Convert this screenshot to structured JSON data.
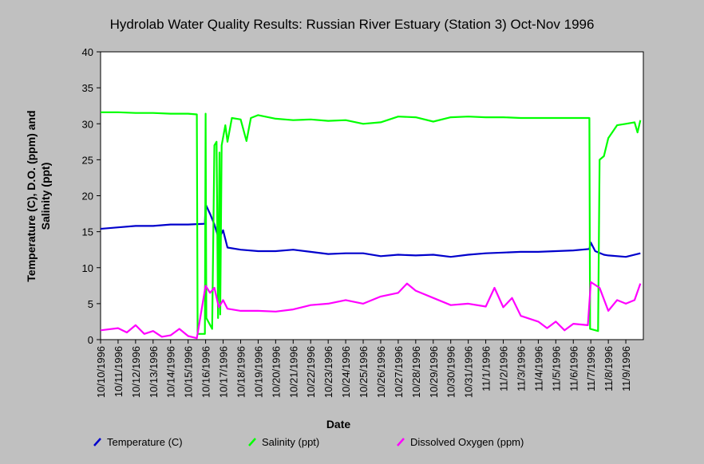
{
  "chart_data": {
    "type": "line",
    "title": "Hydrolab Water Quality Results: Russian River Estuary (Station 3) Oct-Nov 1996",
    "xlabel": "Date",
    "ylabel": "Temperature (C), D.O. (ppm) and Salinity (ppt)",
    "ylim": [
      0,
      40
    ],
    "yticks": [
      0,
      5,
      10,
      15,
      20,
      25,
      30,
      35,
      40
    ],
    "grid": false,
    "legend_position": "bottom",
    "xlim": [
      "10/10/1996",
      "11/10/1996"
    ],
    "xtick_labels": [
      "10/10/1996",
      "10/11/1996",
      "10/12/1996",
      "10/13/1996",
      "10/14/1996",
      "10/15/1996",
      "10/16/1996",
      "10/17/1996",
      "10/18/1996",
      "10/19/1996",
      "10/20/1996",
      "10/21/1996",
      "10/22/1996",
      "10/23/1996",
      "10/24/1996",
      "10/25/1996",
      "10/26/1996",
      "10/27/1996",
      "10/28/1996",
      "10/29/1996",
      "10/30/1996",
      "10/31/1996",
      "11/1/1996",
      "11/2/1996",
      "11/3/1996",
      "11/4/1996",
      "11/5/1996",
      "11/6/1996",
      "11/7/1996",
      "11/8/1996",
      "11/9/1996"
    ],
    "series": [
      {
        "name": "Temperature (C)",
        "color": "#0000cc",
        "points": [
          [
            "10/10/1996 00:00",
            15.4
          ],
          [
            "10/11/1996 00:00",
            15.6
          ],
          [
            "10/12/1996 00:00",
            15.8
          ],
          [
            "10/13/1996 00:00",
            15.8
          ],
          [
            "10/14/1996 00:00",
            16.0
          ],
          [
            "10/15/1996 00:00",
            16.0
          ],
          [
            "10/15/1996 23:00",
            16.1
          ],
          [
            "10/16/1996 00:00",
            18.8
          ],
          [
            "10/16/1996 06:00",
            17.5
          ],
          [
            "10/16/1996 12:00",
            16.0
          ],
          [
            "10/16/1996 18:00",
            14.0
          ],
          [
            "10/17/1996 00:00",
            15.2
          ],
          [
            "10/17/1996 06:00",
            12.8
          ],
          [
            "10/18/1996 00:00",
            12.5
          ],
          [
            "10/19/1996 00:00",
            12.3
          ],
          [
            "10/20/1996 00:00",
            12.3
          ],
          [
            "10/21/1996 00:00",
            12.5
          ],
          [
            "10/22/1996 00:00",
            12.2
          ],
          [
            "10/23/1996 00:00",
            11.9
          ],
          [
            "10/24/1996 00:00",
            12.0
          ],
          [
            "10/25/1996 00:00",
            12.0
          ],
          [
            "10/26/1996 00:00",
            11.6
          ],
          [
            "10/27/1996 00:00",
            11.8
          ],
          [
            "10/28/1996 00:00",
            11.7
          ],
          [
            "10/29/1996 00:00",
            11.8
          ],
          [
            "10/30/1996 00:00",
            11.5
          ],
          [
            "10/31/1996 00:00",
            11.8
          ],
          [
            "11/1/1996 00:00",
            12.0
          ],
          [
            "11/2/1996 00:00",
            12.1
          ],
          [
            "11/3/1996 00:00",
            12.2
          ],
          [
            "11/4/1996 00:00",
            12.2
          ],
          [
            "11/5/1996 00:00",
            12.3
          ],
          [
            "11/6/1996 00:00",
            12.4
          ],
          [
            "11/6/1996 22:00",
            12.6
          ],
          [
            "11/7/1996 00:00",
            13.5
          ],
          [
            "11/7/1996 06:00",
            12.3
          ],
          [
            "11/7/1996 18:00",
            11.8
          ],
          [
            "11/8/1996 00:00",
            11.7
          ],
          [
            "11/9/1996 00:00",
            11.5
          ],
          [
            "11/9/1996 20:00",
            12.0
          ]
        ]
      },
      {
        "name": "Salinity (ppt)",
        "color": "#00ff00",
        "points": [
          [
            "10/10/1996 00:00",
            31.6
          ],
          [
            "10/11/1996 00:00",
            31.6
          ],
          [
            "10/12/1996 00:00",
            31.5
          ],
          [
            "10/13/1996 00:00",
            31.5
          ],
          [
            "10/14/1996 00:00",
            31.4
          ],
          [
            "10/15/1996 00:00",
            31.4
          ],
          [
            "10/15/1996 12:00",
            31.3
          ],
          [
            "10/15/1996 13:00",
            0.8
          ],
          [
            "10/15/1996 23:00",
            0.8
          ],
          [
            "10/16/1996 00:00",
            31.4
          ],
          [
            "10/16/1996 01:00",
            3.0
          ],
          [
            "10/16/1996 09:00",
            1.5
          ],
          [
            "10/16/1996 12:00",
            27.0
          ],
          [
            "10/16/1996 15:00",
            27.5
          ],
          [
            "10/16/1996 17:00",
            3.0
          ],
          [
            "10/16/1996 19:00",
            26.0
          ],
          [
            "10/16/1996 20:00",
            3.5
          ],
          [
            "10/16/1996 22:00",
            27.0
          ],
          [
            "10/17/1996 03:00",
            29.8
          ],
          [
            "10/17/1996 06:00",
            27.5
          ],
          [
            "10/17/1996 12:00",
            30.8
          ],
          [
            "10/18/1996 00:00",
            30.6
          ],
          [
            "10/18/1996 08:00",
            27.6
          ],
          [
            "10/18/1996 14:00",
            30.8
          ],
          [
            "10/19/1996 00:00",
            31.2
          ],
          [
            "10/20/1996 00:00",
            30.7
          ],
          [
            "10/21/1996 00:00",
            30.5
          ],
          [
            "10/22/1996 00:00",
            30.6
          ],
          [
            "10/23/1996 00:00",
            30.4
          ],
          [
            "10/24/1996 00:00",
            30.5
          ],
          [
            "10/25/1996 00:00",
            30.0
          ],
          [
            "10/26/1996 00:00",
            30.2
          ],
          [
            "10/27/1996 00:00",
            31.0
          ],
          [
            "10/28/1996 00:00",
            30.9
          ],
          [
            "10/29/1996 00:00",
            30.3
          ],
          [
            "10/30/1996 00:00",
            30.9
          ],
          [
            "10/31/1996 00:00",
            31.0
          ],
          [
            "11/1/1996 00:00",
            30.9
          ],
          [
            "11/2/1996 00:00",
            30.9
          ],
          [
            "11/3/1996 00:00",
            30.8
          ],
          [
            "11/4/1996 00:00",
            30.8
          ],
          [
            "11/5/1996 00:00",
            30.8
          ],
          [
            "11/6/1996 00:00",
            30.8
          ],
          [
            "11/6/1996 22:00",
            30.8
          ],
          [
            "11/6/1996 23:00",
            1.5
          ],
          [
            "11/7/1996 10:00",
            1.2
          ],
          [
            "11/7/1996 12:00",
            25.0
          ],
          [
            "11/7/1996 18:00",
            25.5
          ],
          [
            "11/8/1996 00:00",
            28.0
          ],
          [
            "11/8/1996 12:00",
            29.8
          ],
          [
            "11/9/1996 00:00",
            30.0
          ],
          [
            "11/9/1996 12:00",
            30.2
          ],
          [
            "11/9/1996 16:00",
            28.8
          ],
          [
            "11/9/1996 20:00",
            30.5
          ]
        ]
      },
      {
        "name": "Dissolved Oxygen (ppm)",
        "color": "#ff00ff",
        "points": [
          [
            "10/10/1996 00:00",
            1.3
          ],
          [
            "10/11/1996 00:00",
            1.6
          ],
          [
            "10/11/1996 12:00",
            1.0
          ],
          [
            "10/12/1996 00:00",
            2.0
          ],
          [
            "10/12/1996 12:00",
            0.8
          ],
          [
            "10/13/1996 00:00",
            1.2
          ],
          [
            "10/13/1996 12:00",
            0.4
          ],
          [
            "10/14/1996 00:00",
            0.6
          ],
          [
            "10/14/1996 12:00",
            1.5
          ],
          [
            "10/15/1996 00:00",
            0.5
          ],
          [
            "10/15/1996 12:00",
            0.2
          ],
          [
            "10/16/1996 00:00",
            7.5
          ],
          [
            "10/16/1996 06:00",
            6.5
          ],
          [
            "10/16/1996 12:00",
            7.2
          ],
          [
            "10/16/1996 18:00",
            4.5
          ],
          [
            "10/17/1996 00:00",
            5.5
          ],
          [
            "10/17/1996 06:00",
            4.3
          ],
          [
            "10/18/1996 00:00",
            4.0
          ],
          [
            "10/19/1996 00:00",
            4.0
          ],
          [
            "10/20/1996 00:00",
            3.9
          ],
          [
            "10/21/1996 00:00",
            4.2
          ],
          [
            "10/22/1996 00:00",
            4.8
          ],
          [
            "10/23/1996 00:00",
            5.0
          ],
          [
            "10/24/1996 00:00",
            5.5
          ],
          [
            "10/25/1996 00:00",
            5.0
          ],
          [
            "10/26/1996 00:00",
            6.0
          ],
          [
            "10/27/1996 00:00",
            6.5
          ],
          [
            "10/27/1996 12:00",
            7.8
          ],
          [
            "10/28/1996 00:00",
            6.8
          ],
          [
            "10/29/1996 00:00",
            5.8
          ],
          [
            "10/30/1996 00:00",
            4.8
          ],
          [
            "10/31/1996 00:00",
            5.0
          ],
          [
            "11/1/1996 00:00",
            4.6
          ],
          [
            "11/1/1996 12:00",
            7.2
          ],
          [
            "11/2/1996 00:00",
            4.5
          ],
          [
            "11/2/1996 12:00",
            5.8
          ],
          [
            "11/3/1996 00:00",
            3.3
          ],
          [
            "11/4/1996 00:00",
            2.5
          ],
          [
            "11/4/1996 12:00",
            1.6
          ],
          [
            "11/5/1996 00:00",
            2.5
          ],
          [
            "11/5/1996 12:00",
            1.3
          ],
          [
            "11/6/1996 00:00",
            2.2
          ],
          [
            "11/6/1996 20:00",
            2.0
          ],
          [
            "11/7/1996 00:00",
            8.0
          ],
          [
            "11/7/1996 12:00",
            7.2
          ],
          [
            "11/8/1996 00:00",
            4.0
          ],
          [
            "11/8/1996 12:00",
            5.5
          ],
          [
            "11/9/1996 00:00",
            5.0
          ],
          [
            "11/9/1996 12:00",
            5.5
          ],
          [
            "11/9/1996 20:00",
            7.8
          ]
        ]
      }
    ]
  }
}
